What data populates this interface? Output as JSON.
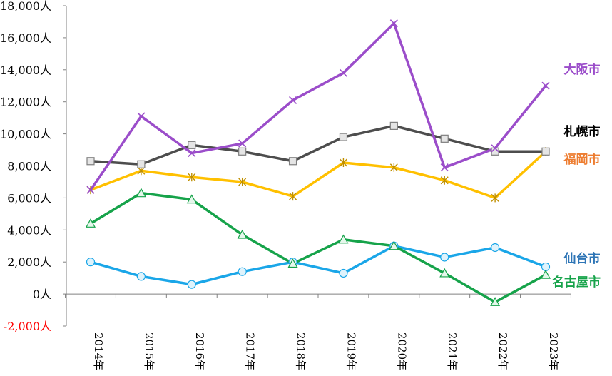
{
  "chart_data": {
    "type": "line",
    "title": "",
    "xlabel": "",
    "ylabel": "",
    "categories": [
      "2014年",
      "2015年",
      "2016年",
      "2017年",
      "2018年",
      "2019年",
      "2020年",
      "2021年",
      "2022年",
      "2023年"
    ],
    "ylim": [
      -2000,
      18000
    ],
    "yticks": [
      {
        "value": 18000,
        "label": "18,000人",
        "color": "#000000"
      },
      {
        "value": 16000,
        "label": "16,000人",
        "color": "#000000"
      },
      {
        "value": 14000,
        "label": "14,000人",
        "color": "#000000"
      },
      {
        "value": 12000,
        "label": "12,000人",
        "color": "#000000"
      },
      {
        "value": 10000,
        "label": "10,000人",
        "color": "#000000"
      },
      {
        "value": 8000,
        "label": "8,000人",
        "color": "#000000"
      },
      {
        "value": 6000,
        "label": "6,000人",
        "color": "#000000"
      },
      {
        "value": 4000,
        "label": "4,000人",
        "color": "#000000"
      },
      {
        "value": 2000,
        "label": "2,000人",
        "color": "#000000"
      },
      {
        "value": 0,
        "label": "0人",
        "color": "#000000"
      },
      {
        "value": -2000,
        "label": "-2,000人",
        "color": "#ff0000"
      }
    ],
    "grid": false,
    "legend": "inline-right",
    "series": [
      {
        "name": "大阪市",
        "color": "#9b4dca",
        "marker": "x",
        "values": [
          6500,
          11100,
          8800,
          9400,
          12100,
          13800,
          16900,
          7900,
          9100,
          13000
        ]
      },
      {
        "name": "札幌市",
        "color": "#4d4d4d",
        "marker": "square",
        "values": [
          8300,
          8100,
          9300,
          8900,
          8300,
          9800,
          10500,
          9700,
          8900,
          8900
        ]
      },
      {
        "name": "福岡市",
        "color": "#ffc000",
        "marker": "asterisk",
        "values": [
          6500,
          7700,
          7300,
          7000,
          6100,
          8200,
          7900,
          7100,
          6000,
          8900
        ]
      },
      {
        "name": "仙台市",
        "color": "#1aa6e8",
        "marker": "circle",
        "values": [
          2000,
          1100,
          600,
          1400,
          2000,
          1300,
          3000,
          2300,
          2900,
          1700
        ]
      },
      {
        "name": "名古屋市",
        "color": "#16a34a",
        "marker": "triangle",
        "values": [
          4400,
          6300,
          5900,
          3700,
          1900,
          3400,
          3000,
          1300,
          -500,
          1200
        ]
      }
    ],
    "series_labels": [
      {
        "text": "大阪市",
        "color": "#9b4dca"
      },
      {
        "text": "札幌市",
        "color": "#000000"
      },
      {
        "text": "福岡市",
        "color": "#ed7d31"
      },
      {
        "text": "仙台市",
        "color": "#2e75b6"
      },
      {
        "text": "名古屋市",
        "color": "#16a34a"
      }
    ]
  }
}
